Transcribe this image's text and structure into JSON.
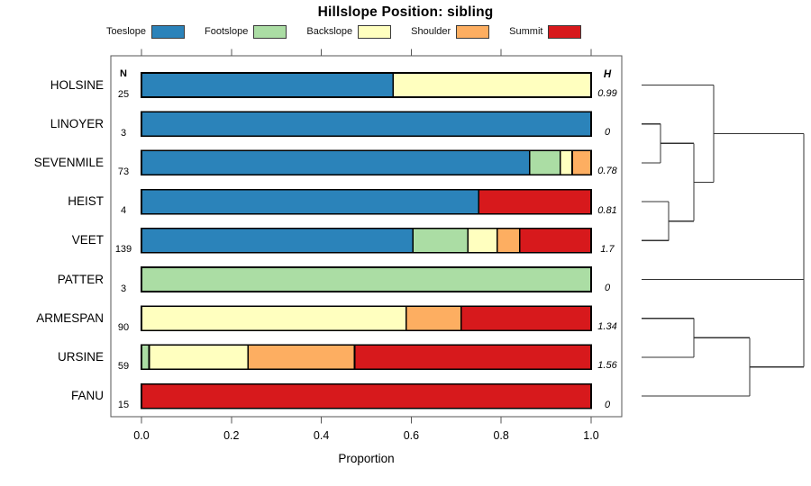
{
  "title": "Hillslope Position: sibling",
  "chart_data": {
    "type": "bar",
    "variant": "horizontal-stacked-proportion",
    "title": "Hillslope Position: sibling",
    "xlabel": "Proportion",
    "xlim": [
      0,
      1
    ],
    "x_ticks": [
      "0.0",
      "0.2",
      "0.4",
      "0.6",
      "0.8",
      "1.0"
    ],
    "grid": false,
    "legend_position": "top",
    "n_header": "N",
    "h_header": "H",
    "legend": [
      {
        "label": "Toeslope",
        "color": "#2b83ba"
      },
      {
        "label": "Footslope",
        "color": "#abdda4"
      },
      {
        "label": "Backslope",
        "color": "#ffffbf"
      },
      {
        "label": "Shoulder",
        "color": "#fdae61"
      },
      {
        "label": "Summit",
        "color": "#d7191c"
      }
    ],
    "rows": [
      {
        "label": "HOLSINE",
        "n": "25",
        "h": "0.99",
        "segments": [
          {
            "category": "Toeslope",
            "value": 0.56
          },
          {
            "category": "Backslope",
            "value": 0.44
          }
        ]
      },
      {
        "label": "LINOYER",
        "n": "3",
        "h": "0",
        "segments": [
          {
            "category": "Toeslope",
            "value": 1.0
          }
        ]
      },
      {
        "label": "SEVENMILE",
        "n": "73",
        "h": "0.78",
        "segments": [
          {
            "category": "Toeslope",
            "value": 0.863
          },
          {
            "category": "Footslope",
            "value": 0.068
          },
          {
            "category": "Backslope",
            "value": 0.027
          },
          {
            "category": "Shoulder",
            "value": 0.042
          }
        ]
      },
      {
        "label": "HEIST",
        "n": "4",
        "h": "0.81",
        "segments": [
          {
            "category": "Toeslope",
            "value": 0.75
          },
          {
            "category": "Summit",
            "value": 0.25
          }
        ]
      },
      {
        "label": "VEET",
        "n": "139",
        "h": "1.7",
        "segments": [
          {
            "category": "Toeslope",
            "value": 0.604
          },
          {
            "category": "Footslope",
            "value": 0.122
          },
          {
            "category": "Backslope",
            "value": 0.065
          },
          {
            "category": "Shoulder",
            "value": 0.05
          },
          {
            "category": "Summit",
            "value": 0.159
          }
        ]
      },
      {
        "label": "PATTER",
        "n": "3",
        "h": "0",
        "segments": [
          {
            "category": "Footslope",
            "value": 1.0
          }
        ]
      },
      {
        "label": "ARMESPAN",
        "n": "90",
        "h": "1.34",
        "segments": [
          {
            "category": "Backslope",
            "value": 0.589
          },
          {
            "category": "Shoulder",
            "value": 0.122
          },
          {
            "category": "Summit",
            "value": 0.289
          }
        ]
      },
      {
        "label": "URSINE",
        "n": "59",
        "h": "1.56",
        "segments": [
          {
            "category": "Footslope",
            "value": 0.017
          },
          {
            "category": "Backslope",
            "value": 0.22
          },
          {
            "category": "Shoulder",
            "value": 0.237
          },
          {
            "category": "Summit",
            "value": 0.526
          }
        ]
      },
      {
        "label": "FANU",
        "n": "15",
        "h": "0",
        "segments": [
          {
            "category": "Summit",
            "value": 1.0
          }
        ]
      }
    ],
    "dendrogram_segments": [
      [
        712,
        94.5,
        792,
        94.5
      ],
      [
        712,
        137.7,
        733,
        137.7
      ],
      [
        712,
        180.9,
        733,
        180.9
      ],
      [
        712,
        224.1,
        742,
        224.1
      ],
      [
        712,
        267.3,
        742,
        267.3
      ],
      [
        712,
        310.5,
        892,
        310.5
      ],
      [
        712,
        353.7,
        770,
        353.7
      ],
      [
        712,
        396.9,
        770,
        396.9
      ],
      [
        712,
        440.1,
        832,
        440.1
      ],
      [
        733,
        137.7,
        733,
        180.9
      ],
      [
        733,
        159.3,
        770,
        159.3
      ],
      [
        742,
        224.1,
        742,
        267.3
      ],
      [
        742,
        245.7,
        770,
        245.7
      ],
      [
        770,
        159.3,
        770,
        245.7
      ],
      [
        770,
        202.5,
        792,
        202.5
      ],
      [
        792,
        94.5,
        792,
        202.5
      ],
      [
        792,
        148.5,
        892,
        148.5
      ],
      [
        770,
        353.7,
        770,
        396.9
      ],
      [
        770,
        375.3,
        832,
        375.3
      ],
      [
        832,
        375.3,
        832,
        440.1
      ],
      [
        832,
        407.7,
        892,
        407.7
      ],
      [
        892,
        148.5,
        892,
        407.7
      ]
    ]
  }
}
